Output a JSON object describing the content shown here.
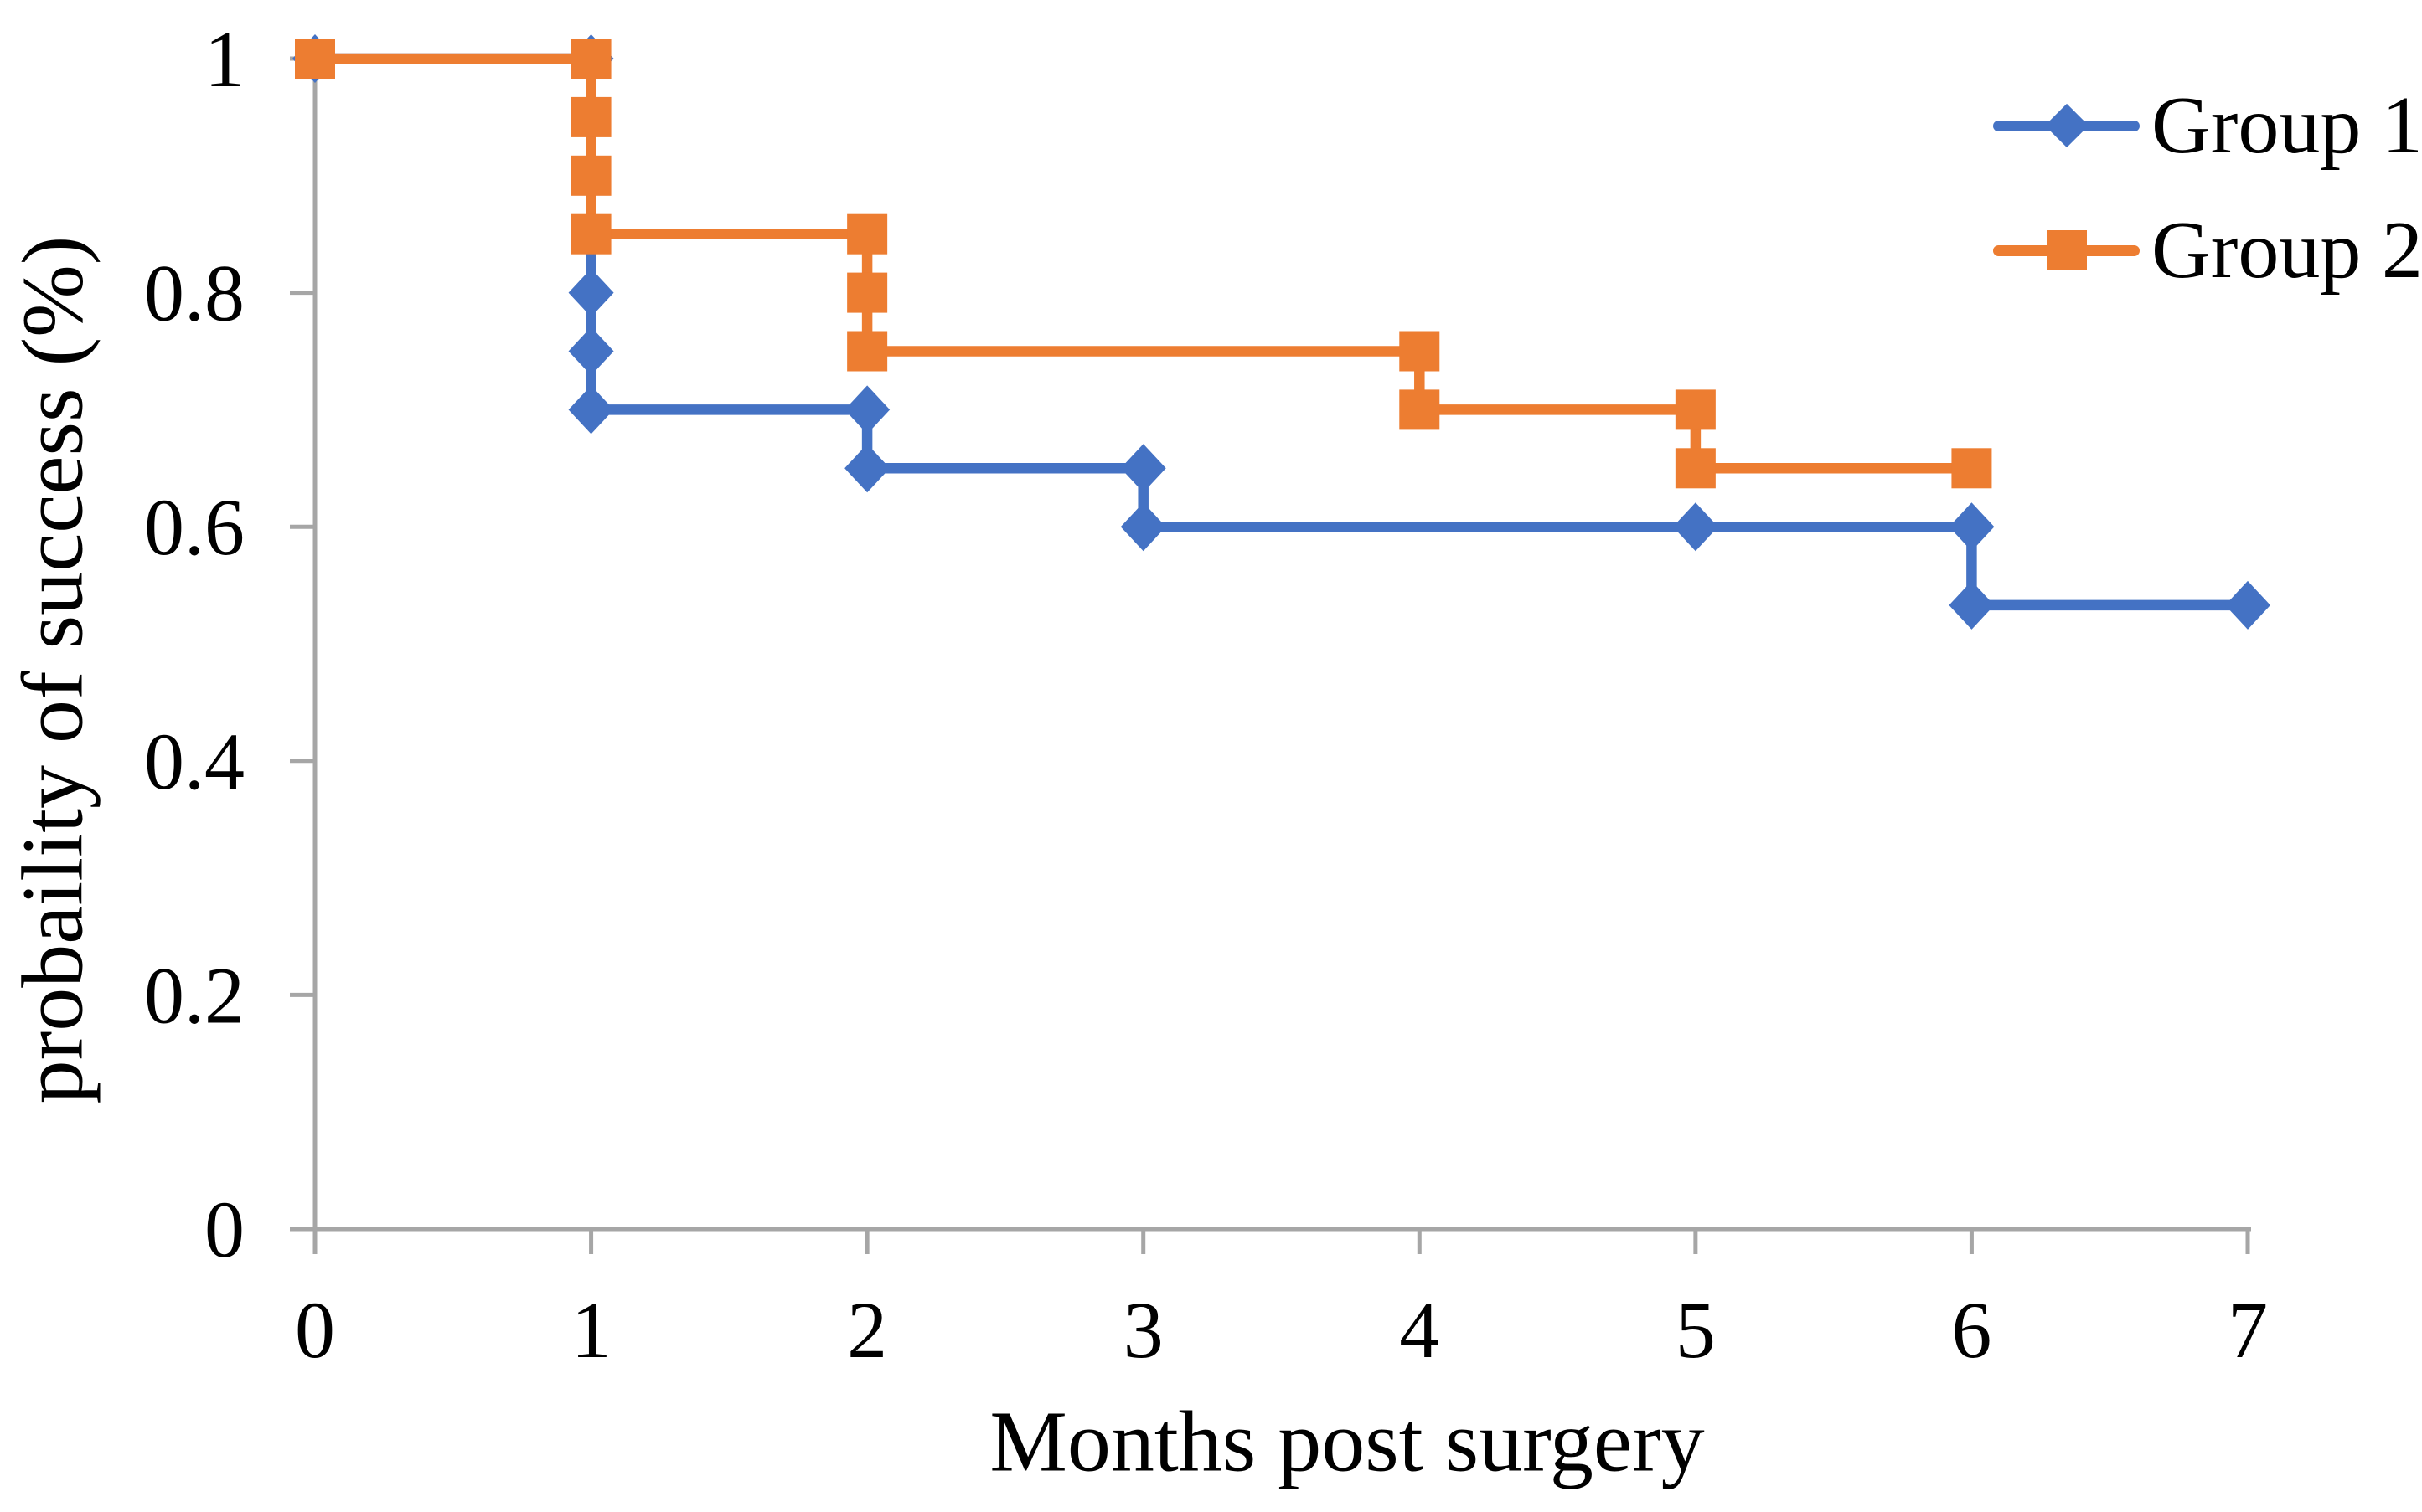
{
  "figure": {
    "background": "#FFFFFF"
  },
  "chart_data": {
    "type": "line",
    "subtype": "step-kaplan-meier",
    "title": "",
    "xlabel": "Months post surgery",
    "ylabel": "probaility of success (%)",
    "xlim": [
      0,
      7
    ],
    "ylim": [
      0,
      1
    ],
    "grid": false,
    "legend_position": "top-right",
    "axis_color": "#A6A6A6",
    "text_color": "#000000",
    "x_ticks": [
      0,
      1,
      2,
      3,
      4,
      5,
      6,
      7
    ],
    "x_tick_labels": [
      "0",
      "1",
      "2",
      "3",
      "4",
      "5",
      "6",
      "7"
    ],
    "y_ticks": [
      1,
      0.8,
      0.6,
      0.4,
      0.2,
      0
    ],
    "y_tick_labels": [
      "1",
      "0.8",
      "0.6",
      "0.4",
      "0.2",
      "0"
    ],
    "series": [
      {
        "name": "Group 1",
        "color": "#4472C4",
        "marker": "diamond",
        "points": [
          [
            0,
            1
          ],
          [
            1,
            1
          ],
          [
            1,
            0.8
          ],
          [
            1,
            0.75
          ],
          [
            1,
            0.7
          ],
          [
            2,
            0.7
          ],
          [
            2,
            0.65
          ],
          [
            3,
            0.65
          ],
          [
            3,
            0.6
          ],
          [
            5,
            0.6
          ],
          [
            6,
            0.6
          ],
          [
            6,
            0.533
          ],
          [
            7,
            0.533
          ]
        ]
      },
      {
        "name": "Group 2",
        "color": "#ED7D31",
        "marker": "square",
        "points": [
          [
            0,
            1
          ],
          [
            1,
            1
          ],
          [
            1,
            0.95
          ],
          [
            1,
            0.9
          ],
          [
            1,
            0.85
          ],
          [
            2,
            0.85
          ],
          [
            2,
            0.8
          ],
          [
            2,
            0.75
          ],
          [
            4,
            0.75
          ],
          [
            4,
            0.7
          ],
          [
            5,
            0.7
          ],
          [
            5,
            0.65
          ],
          [
            6,
            0.65
          ]
        ]
      }
    ],
    "legend": {
      "items": [
        {
          "label": "Group 1"
        },
        {
          "label": "Group 2"
        }
      ]
    }
  }
}
